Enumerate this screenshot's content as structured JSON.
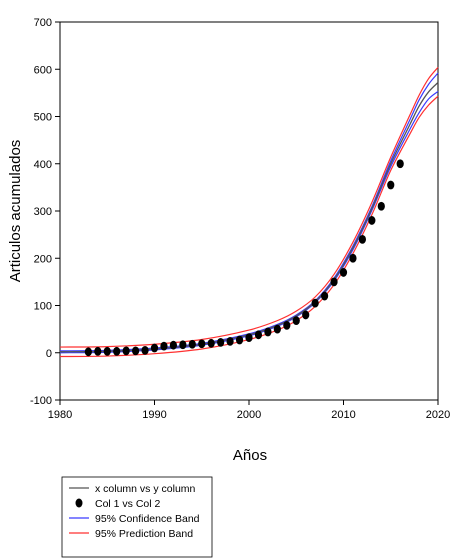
{
  "chart_data": {
    "type": "scatter",
    "xlabel": "Años",
    "ylabel": "Articulos acumulados",
    "xlim": [
      1980,
      2020
    ],
    "ylim": [
      -100,
      700
    ],
    "x_ticks": [
      1980,
      1990,
      2000,
      2010,
      2020
    ],
    "y_ticks": [
      -100,
      0,
      100,
      200,
      300,
      400,
      500,
      600,
      700
    ],
    "grid": false,
    "legend_position": "bottom-left",
    "series": [
      {
        "name": "x column vs y column",
        "kind": "line",
        "color": "#555555",
        "x": [
          1980,
          1985,
          1990,
          1995,
          2000,
          2003,
          2005,
          2007,
          2009,
          2011,
          2013,
          2015,
          2017,
          2018,
          2019,
          2020
        ],
        "y": [
          2,
          3,
          8,
          18,
          38,
          58,
          78,
          108,
          155,
          222,
          305,
          400,
          482,
          522,
          552,
          572
        ]
      },
      {
        "name": "Col 1 vs Col 2",
        "kind": "scatter",
        "color": "#000000",
        "x": [
          1983,
          1984,
          1985,
          1986,
          1987,
          1988,
          1989,
          1990,
          1991,
          1992,
          1993,
          1994,
          1995,
          1996,
          1997,
          1998,
          1999,
          2000,
          2001,
          2002,
          2003,
          2004,
          2005,
          2006,
          2007,
          2008,
          2009,
          2010,
          2011,
          2012,
          2013,
          2014,
          2015,
          2016
        ],
        "y": [
          2,
          3,
          3,
          3,
          4,
          4,
          5,
          10,
          14,
          16,
          17,
          18,
          19,
          20,
          22,
          24,
          27,
          32,
          38,
          44,
          50,
          58,
          68,
          80,
          105,
          120,
          150,
          170,
          200,
          240,
          280,
          310,
          355,
          400
        ]
      },
      {
        "name": "95% Confidence Band",
        "kind": "band",
        "color": "#3a3aff",
        "upper": {
          "x": [
            1980,
            1985,
            1990,
            1995,
            2000,
            2003,
            2005,
            2007,
            2009,
            2011,
            2013,
            2015,
            2017,
            2018,
            2019,
            2020
          ],
          "y": [
            4,
            5,
            10,
            20,
            40,
            60,
            80,
            110,
            158,
            226,
            309,
            406,
            492,
            535,
            568,
            592
          ]
        },
        "lower": {
          "x": [
            1980,
            1985,
            1990,
            1995,
            2000,
            2003,
            2005,
            2007,
            2009,
            2011,
            2013,
            2015,
            2017,
            2018,
            2019,
            2020
          ],
          "y": [
            0,
            1,
            6,
            16,
            36,
            56,
            76,
            106,
            152,
            218,
            301,
            394,
            472,
            508,
            537,
            553
          ]
        }
      },
      {
        "name": "95% Prediction Band",
        "kind": "band",
        "color": "#ff3030",
        "upper": {
          "x": [
            1980,
            1985,
            1990,
            1995,
            2000,
            2003,
            2005,
            2007,
            2009,
            2011,
            2013,
            2015,
            2017,
            2018,
            2019,
            2020
          ],
          "y": [
            12,
            13,
            18,
            28,
            48,
            68,
            88,
            118,
            166,
            234,
            318,
            414,
            502,
            545,
            580,
            604
          ]
        },
        "lower": {
          "x": [
            1980,
            1985,
            1990,
            1995,
            2000,
            2003,
            2005,
            2007,
            2009,
            2011,
            2013,
            2015,
            2017,
            2018,
            2019,
            2020
          ],
          "y": [
            -8,
            -7,
            -2,
            8,
            28,
            48,
            68,
            98,
            144,
            210,
            292,
            386,
            462,
            498,
            524,
            543
          ]
        }
      }
    ]
  }
}
